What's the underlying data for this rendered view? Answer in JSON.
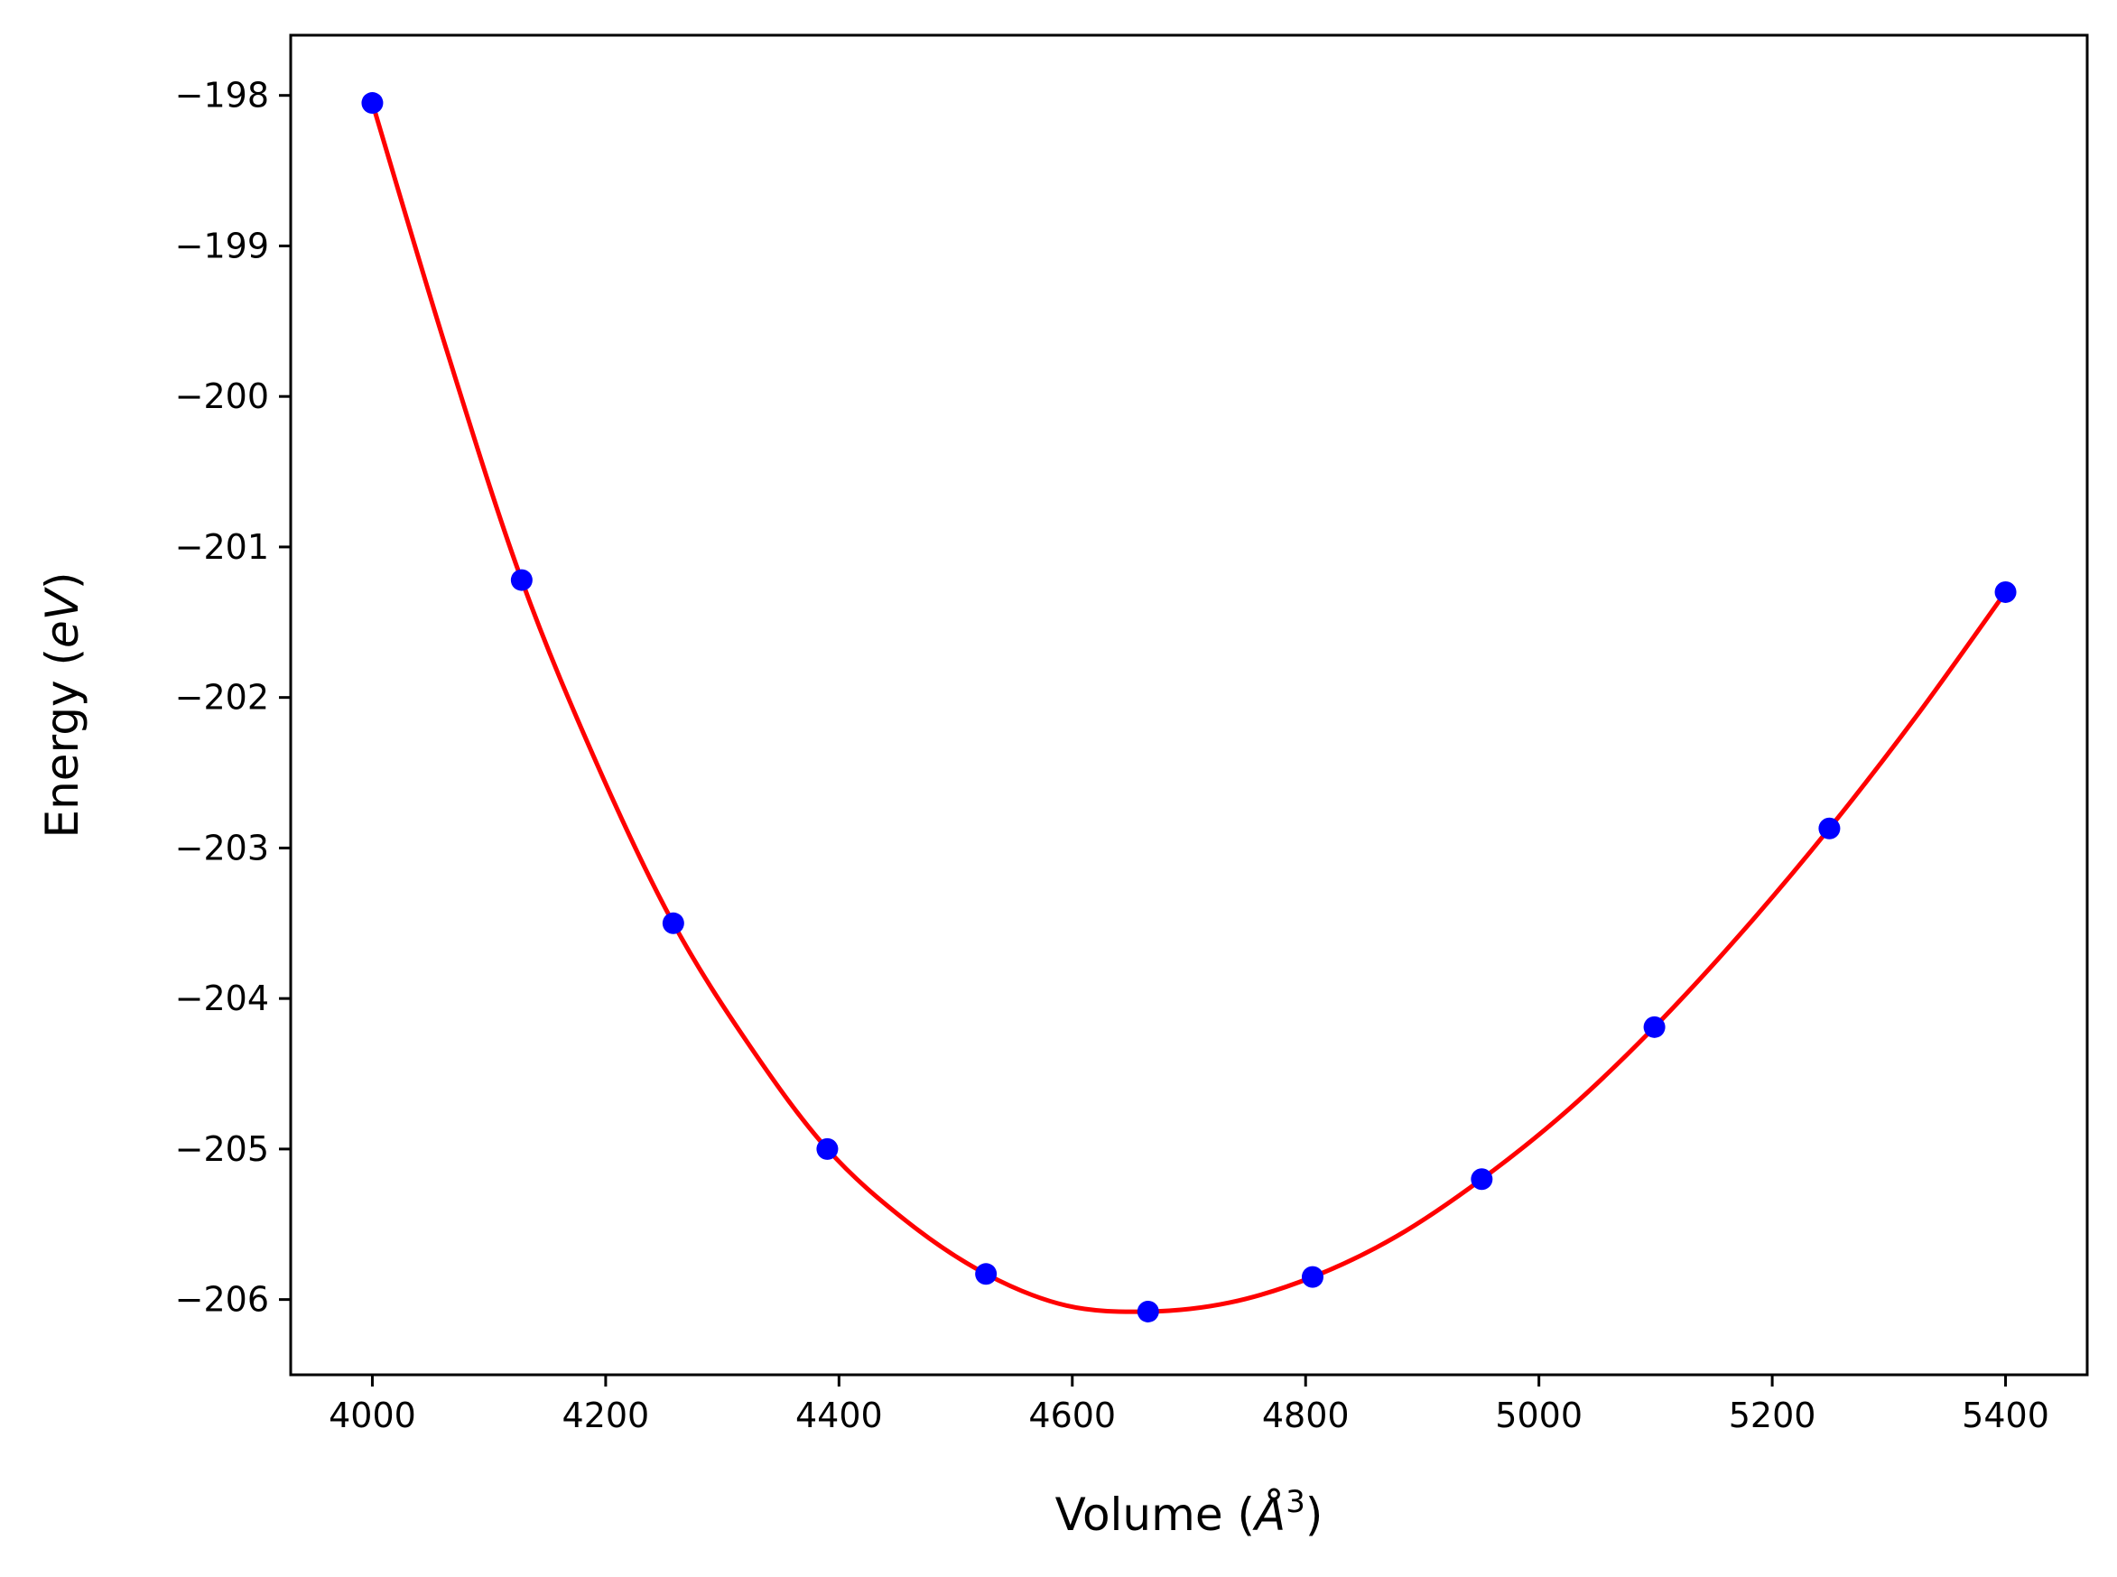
{
  "chart_data": {
    "type": "scatter",
    "title": "",
    "xlabel": {
      "prefix": "Volume (",
      "var": "Å",
      "sup": "3",
      "suffix": ")"
    },
    "ylabel": {
      "prefix": "Energy (",
      "var": "eV",
      "suffix": ")"
    },
    "xlim": [
      3930,
      5470
    ],
    "ylim": [
      -206.5,
      -197.6
    ],
    "xticks": [
      4000,
      4200,
      4400,
      4600,
      4800,
      5000,
      5200,
      5400
    ],
    "xtick_labels": [
      "4000",
      "4200",
      "4400",
      "4600",
      "4800",
      "5000",
      "5200",
      "5400"
    ],
    "yticks": [
      -198,
      -199,
      -200,
      -201,
      -202,
      -203,
      -204,
      -205,
      -206
    ],
    "ytick_labels": [
      "−198",
      "−199",
      "−200",
      "−201",
      "−202",
      "−203",
      "−204",
      "−205",
      "−206"
    ],
    "grid": false,
    "series": [
      {
        "kind": "points",
        "color": "#0000ff",
        "x": [
          4000,
          4128,
          4258,
          4390,
          4526,
          4665,
          4806,
          4951,
          5099,
          5249,
          5400
        ],
        "y": [
          -198.05,
          -201.22,
          -203.5,
          -205.0,
          -205.83,
          -206.08,
          -205.85,
          -205.2,
          -204.19,
          -202.87,
          -201.3
        ]
      },
      {
        "kind": "fit",
        "color": "#ff0000",
        "x": [
          4000,
          4064,
          4128,
          4193,
          4258,
          4324,
          4390,
          4458,
          4526,
          4595,
          4665,
          4735,
          4806,
          4878,
          4951,
          5025,
          5099,
          5174,
          5249,
          5324,
          5400
        ],
        "y": [
          -198.05,
          -199.7,
          -201.22,
          -202.45,
          -203.5,
          -204.32,
          -205.0,
          -205.48,
          -205.83,
          -206.04,
          -206.08,
          -206.02,
          -205.85,
          -205.58,
          -205.2,
          -204.74,
          -204.19,
          -203.56,
          -202.87,
          -202.12,
          -201.3
        ]
      }
    ]
  }
}
